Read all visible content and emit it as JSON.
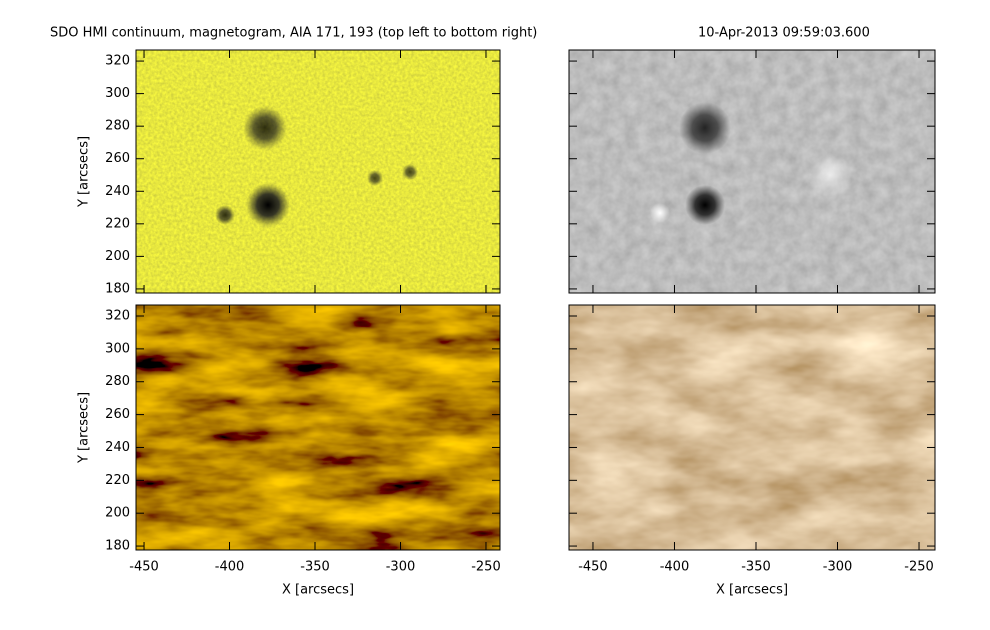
{
  "title": "SDO HMI continuum, magnetogram, AIA 171, 193 (top left to bottom right)",
  "date": "10-Apr-2013 09:59:03.600",
  "chart_data": [
    {
      "type": "image",
      "xlim": [
        -454.7,
        -241.8
      ],
      "ylim": [
        177.5,
        326.8
      ],
      "xticks": [
        -450,
        -400,
        -350,
        -300,
        -250
      ],
      "yticks": [
        180,
        200,
        220,
        240,
        260,
        280,
        300,
        320
      ],
      "ylabel": "Y [arcsecs]",
      "xtick_labels": false,
      "ytick_labels": true
    },
    {
      "type": "image",
      "xlim": [
        -464.7,
        -240.2
      ],
      "ylim": [
        177.5,
        326.8
      ],
      "xticks": [
        -450,
        -400,
        -350,
        -300,
        -250
      ],
      "yticks": [
        180,
        200,
        220,
        240,
        260,
        280,
        300,
        320
      ],
      "xtick_labels": false,
      "ytick_labels": false
    },
    {
      "type": "image",
      "xlim": [
        -454.7,
        -241.8
      ],
      "ylim": [
        177.6,
        326.7
      ],
      "xticks": [
        -450,
        -400,
        -350,
        -300,
        -250
      ],
      "yticks": [
        180,
        200,
        220,
        240,
        260,
        280,
        300,
        320
      ],
      "xlabel": "X [arcsecs]",
      "ylabel": "Y [arcsecs]",
      "xtick_labels": true,
      "ytick_labels": true
    },
    {
      "type": "image",
      "xlim": [
        -464.7,
        -240.2
      ],
      "ylim": [
        177.6,
        326.7
      ],
      "xticks": [
        -450,
        -400,
        -350,
        -300,
        -250
      ],
      "yticks": [
        180,
        200,
        220,
        240,
        260,
        280,
        300,
        320
      ],
      "xlabel": "X [arcsecs]",
      "xtick_labels": true,
      "ytick_labels": false
    }
  ]
}
